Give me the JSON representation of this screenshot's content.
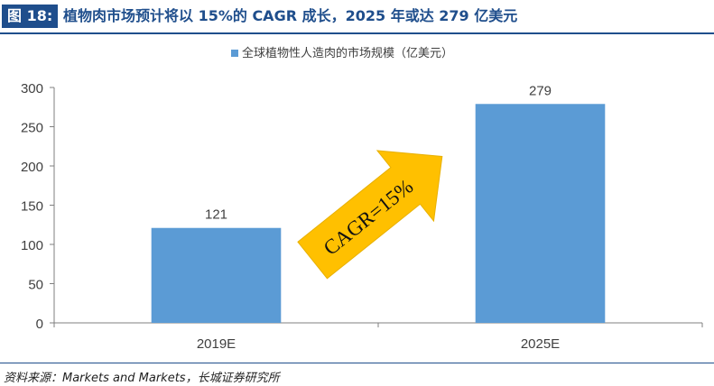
{
  "figure": {
    "label": "图 18:",
    "title": "植物肉市场预计将以 15%的 CAGR 成长，2025 年或达 279 亿美元"
  },
  "source": "资料来源：Markets and Markets，长城证券研究所",
  "colors": {
    "bar": "#5b9bd5",
    "brand": "#1f4e8c",
    "arrow": "#ffc000",
    "axis": "#7f7f7f",
    "text": "#404040"
  },
  "chart_data": {
    "type": "bar",
    "categories": [
      "2019E",
      "2025E"
    ],
    "series": [
      {
        "name": "全球植物性人造肉的市场规模（亿美元）",
        "values": [
          121,
          279
        ]
      }
    ],
    "data_labels": [
      "121",
      "279"
    ],
    "ylim": [
      0,
      300
    ],
    "yticks": [
      0,
      50,
      100,
      150,
      200,
      250,
      300
    ],
    "legend": "top-center",
    "grid": false,
    "annotation": {
      "text": "CAGR=15%",
      "shape": "arrow",
      "direction": "up-right"
    }
  }
}
